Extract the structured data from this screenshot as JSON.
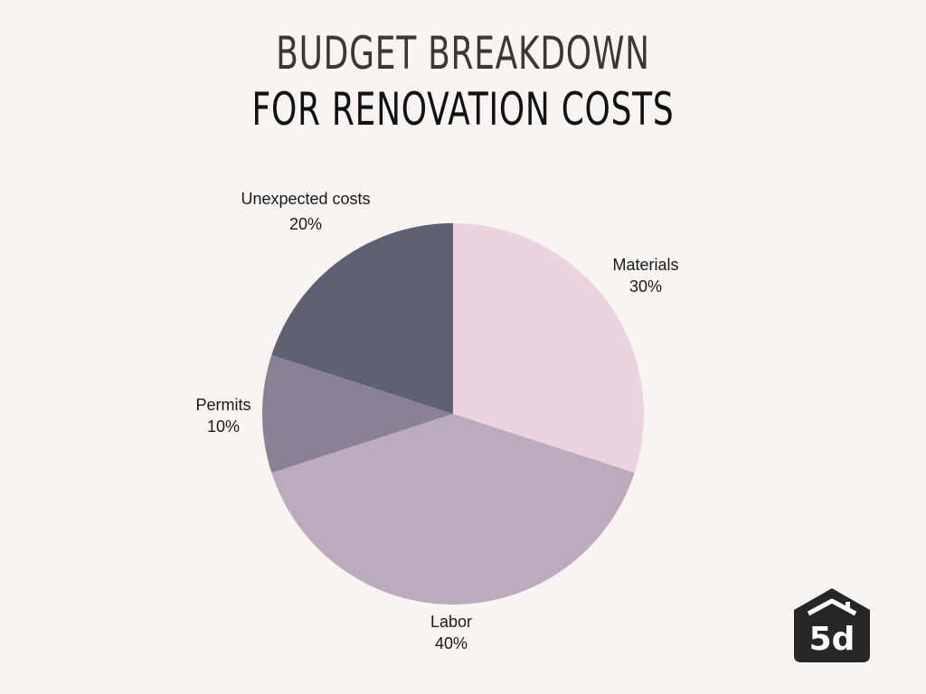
{
  "header": {
    "line1": "BUDGET BREAKDOWN",
    "line2": "FOR RENOVATION COSTS"
  },
  "chart_data": {
    "type": "pie",
    "title": "Budget Breakdown for Renovation Costs",
    "start_angle": "12 o'clock, clockwise",
    "categories": [
      "Materials",
      "Labor",
      "Permits",
      "Unexpected costs"
    ],
    "values": [
      30,
      40,
      10,
      20
    ],
    "labels": [
      "30%",
      "40%",
      "10%",
      "20%"
    ],
    "colors": [
      "#ebd4df",
      "#bcaabd",
      "#8a8194",
      "#5e6073"
    ],
    "legend": "none (direct labels)"
  },
  "labels": {
    "materials": {
      "name": "Materials",
      "pct": "30%"
    },
    "labor": {
      "name": "Labor",
      "pct": "40%"
    },
    "permits": {
      "name": "Permits",
      "pct": "10%"
    },
    "unexpected": {
      "name": "Unexpected costs",
      "pct": "20%"
    }
  },
  "logo": {
    "text": "5d",
    "color": "#262626"
  }
}
